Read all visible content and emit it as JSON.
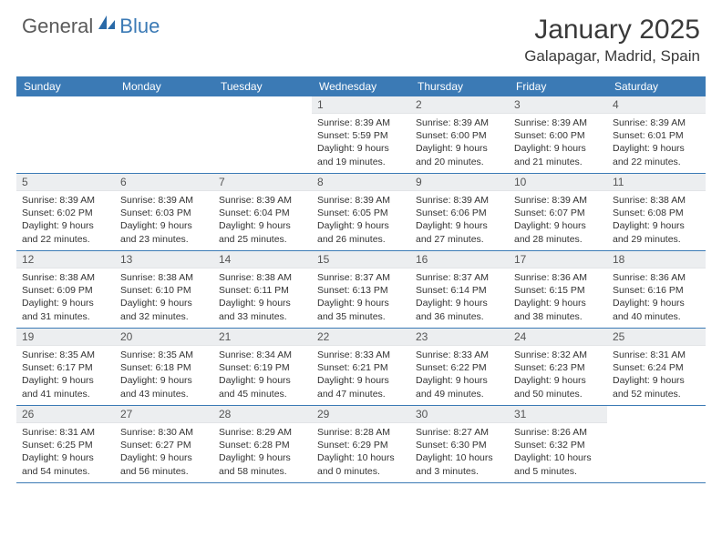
{
  "logo": {
    "text_gray": "General",
    "text_blue": "Blue"
  },
  "title": "January 2025",
  "location": "Galapagar, Madrid, Spain",
  "colors": {
    "header_bg": "#3b7ab5",
    "header_text": "#ffffff",
    "daynum_bg": "#eceef0",
    "border": "#3b7ab5",
    "text": "#333333"
  },
  "day_headers": [
    "Sunday",
    "Monday",
    "Tuesday",
    "Wednesday",
    "Thursday",
    "Friday",
    "Saturday"
  ],
  "weeks": [
    [
      {
        "n": "",
        "empty": true
      },
      {
        "n": "",
        "empty": true
      },
      {
        "n": "",
        "empty": true
      },
      {
        "n": "1",
        "sunrise": "8:39 AM",
        "sunset": "5:59 PM",
        "daylight": "9 hours and 19 minutes."
      },
      {
        "n": "2",
        "sunrise": "8:39 AM",
        "sunset": "6:00 PM",
        "daylight": "9 hours and 20 minutes."
      },
      {
        "n": "3",
        "sunrise": "8:39 AM",
        "sunset": "6:00 PM",
        "daylight": "9 hours and 21 minutes."
      },
      {
        "n": "4",
        "sunrise": "8:39 AM",
        "sunset": "6:01 PM",
        "daylight": "9 hours and 22 minutes."
      }
    ],
    [
      {
        "n": "5",
        "sunrise": "8:39 AM",
        "sunset": "6:02 PM",
        "daylight": "9 hours and 22 minutes."
      },
      {
        "n": "6",
        "sunrise": "8:39 AM",
        "sunset": "6:03 PM",
        "daylight": "9 hours and 23 minutes."
      },
      {
        "n": "7",
        "sunrise": "8:39 AM",
        "sunset": "6:04 PM",
        "daylight": "9 hours and 25 minutes."
      },
      {
        "n": "8",
        "sunrise": "8:39 AM",
        "sunset": "6:05 PM",
        "daylight": "9 hours and 26 minutes."
      },
      {
        "n": "9",
        "sunrise": "8:39 AM",
        "sunset": "6:06 PM",
        "daylight": "9 hours and 27 minutes."
      },
      {
        "n": "10",
        "sunrise": "8:39 AM",
        "sunset": "6:07 PM",
        "daylight": "9 hours and 28 minutes."
      },
      {
        "n": "11",
        "sunrise": "8:38 AM",
        "sunset": "6:08 PM",
        "daylight": "9 hours and 29 minutes."
      }
    ],
    [
      {
        "n": "12",
        "sunrise": "8:38 AM",
        "sunset": "6:09 PM",
        "daylight": "9 hours and 31 minutes."
      },
      {
        "n": "13",
        "sunrise": "8:38 AM",
        "sunset": "6:10 PM",
        "daylight": "9 hours and 32 minutes."
      },
      {
        "n": "14",
        "sunrise": "8:38 AM",
        "sunset": "6:11 PM",
        "daylight": "9 hours and 33 minutes."
      },
      {
        "n": "15",
        "sunrise": "8:37 AM",
        "sunset": "6:13 PM",
        "daylight": "9 hours and 35 minutes."
      },
      {
        "n": "16",
        "sunrise": "8:37 AM",
        "sunset": "6:14 PM",
        "daylight": "9 hours and 36 minutes."
      },
      {
        "n": "17",
        "sunrise": "8:36 AM",
        "sunset": "6:15 PM",
        "daylight": "9 hours and 38 minutes."
      },
      {
        "n": "18",
        "sunrise": "8:36 AM",
        "sunset": "6:16 PM",
        "daylight": "9 hours and 40 minutes."
      }
    ],
    [
      {
        "n": "19",
        "sunrise": "8:35 AM",
        "sunset": "6:17 PM",
        "daylight": "9 hours and 41 minutes."
      },
      {
        "n": "20",
        "sunrise": "8:35 AM",
        "sunset": "6:18 PM",
        "daylight": "9 hours and 43 minutes."
      },
      {
        "n": "21",
        "sunrise": "8:34 AM",
        "sunset": "6:19 PM",
        "daylight": "9 hours and 45 minutes."
      },
      {
        "n": "22",
        "sunrise": "8:33 AM",
        "sunset": "6:21 PM",
        "daylight": "9 hours and 47 minutes."
      },
      {
        "n": "23",
        "sunrise": "8:33 AM",
        "sunset": "6:22 PM",
        "daylight": "9 hours and 49 minutes."
      },
      {
        "n": "24",
        "sunrise": "8:32 AM",
        "sunset": "6:23 PM",
        "daylight": "9 hours and 50 minutes."
      },
      {
        "n": "25",
        "sunrise": "8:31 AM",
        "sunset": "6:24 PM",
        "daylight": "9 hours and 52 minutes."
      }
    ],
    [
      {
        "n": "26",
        "sunrise": "8:31 AM",
        "sunset": "6:25 PM",
        "daylight": "9 hours and 54 minutes."
      },
      {
        "n": "27",
        "sunrise": "8:30 AM",
        "sunset": "6:27 PM",
        "daylight": "9 hours and 56 minutes."
      },
      {
        "n": "28",
        "sunrise": "8:29 AM",
        "sunset": "6:28 PM",
        "daylight": "9 hours and 58 minutes."
      },
      {
        "n": "29",
        "sunrise": "8:28 AM",
        "sunset": "6:29 PM",
        "daylight": "10 hours and 0 minutes."
      },
      {
        "n": "30",
        "sunrise": "8:27 AM",
        "sunset": "6:30 PM",
        "daylight": "10 hours and 3 minutes."
      },
      {
        "n": "31",
        "sunrise": "8:26 AM",
        "sunset": "6:32 PM",
        "daylight": "10 hours and 5 minutes."
      },
      {
        "n": "",
        "empty": true
      }
    ]
  ],
  "labels": {
    "sunrise": "Sunrise:",
    "sunset": "Sunset:",
    "daylight": "Daylight:"
  }
}
